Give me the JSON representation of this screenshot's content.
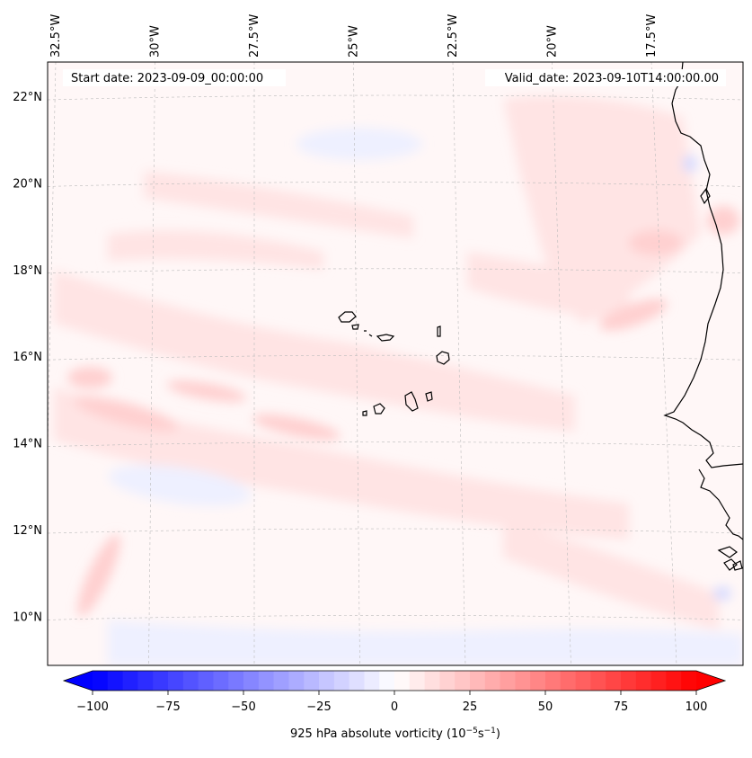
{
  "header": {
    "start_label": "Start date: 2023-09-09_00:00:00",
    "valid_label": "Valid_date: 2023-09-10T14:00:00.00"
  },
  "map": {
    "extent": {
      "lon_min": -33.0,
      "lon_max": -15.6,
      "lat_min": 8.8,
      "lat_max": 22.8
    },
    "lon_ticks": [
      {
        "value": -32.5,
        "label": "32.5°W"
      },
      {
        "value": -30.0,
        "label": "30°W"
      },
      {
        "value": -27.5,
        "label": "27.5°W"
      },
      {
        "value": -25.0,
        "label": "25°W"
      },
      {
        "value": -22.5,
        "label": "22.5°W"
      },
      {
        "value": -20.0,
        "label": "20°W"
      },
      {
        "value": -17.5,
        "label": "17.5°W"
      }
    ],
    "lat_ticks": [
      {
        "value": 22,
        "label": "22°N"
      },
      {
        "value": 20,
        "label": "20°N"
      },
      {
        "value": 18,
        "label": "18°N"
      },
      {
        "value": 16,
        "label": "16°N"
      },
      {
        "value": 14,
        "label": "14°N"
      },
      {
        "value": 12,
        "label": "12°N"
      },
      {
        "value": 10,
        "label": "10°N"
      }
    ],
    "field_colors": {
      "background": "#fff7f7",
      "light_red": "#ffe4e4",
      "mid_red": "#ffd0d0",
      "light_blue": "#eef0ff",
      "mid_blue": "#d8dcff"
    }
  },
  "colorbar": {
    "label": "925 hPa absolute vorticity (10",
    "label_exp1": "−5",
    "label_mid": "s",
    "label_exp2": "−1",
    "label_end": ")",
    "min": -100,
    "max": 100,
    "step": 5,
    "min_color": "#0000ff",
    "mid_color": "#ffffff",
    "max_color": "#ff0000",
    "ticks": [
      {
        "value": -100,
        "label": "−100"
      },
      {
        "value": -75,
        "label": "−75"
      },
      {
        "value": -50,
        "label": "−50"
      },
      {
        "value": -25,
        "label": "−25"
      },
      {
        "value": 0,
        "label": "0"
      },
      {
        "value": 25,
        "label": "25"
      },
      {
        "value": 50,
        "label": "50"
      },
      {
        "value": 75,
        "label": "75"
      },
      {
        "value": 100,
        "label": "100"
      }
    ]
  }
}
